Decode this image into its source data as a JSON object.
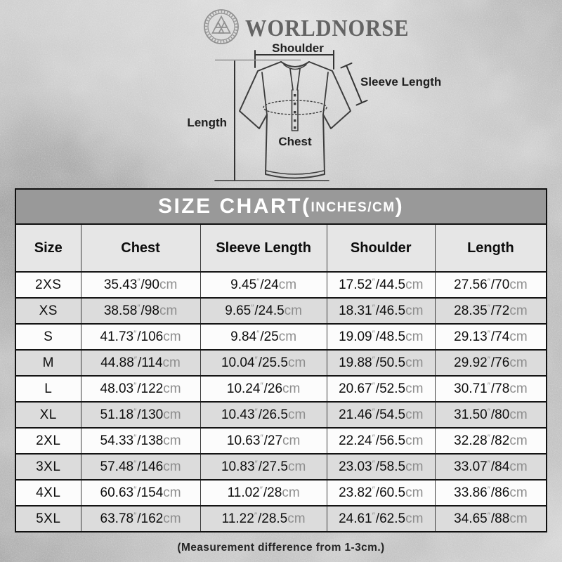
{
  "brand": {
    "name": "WORLDNORSE",
    "logo_icon": "valknut-circle-icon"
  },
  "diagram": {
    "labels": {
      "shoulder": "Shoulder",
      "sleeve_length": "Sleeve Length",
      "length": "Length",
      "chest": "Chest"
    }
  },
  "size_chart": {
    "title": {
      "main": "SIZE CHART(",
      "sub": "INCHES/CM",
      "close": ")"
    },
    "columns": [
      "Size",
      "Chest",
      "Sleeve Length",
      "Shoulder",
      "Length"
    ],
    "units": {
      "inch_mark": "″",
      "separator": "/",
      "cm_suffix": "cm"
    },
    "rows": [
      {
        "size": "2XS",
        "chest": {
          "in": "35.43",
          "cm": "90"
        },
        "sleeve": {
          "in": "9.45",
          "cm": "24"
        },
        "shoulder": {
          "in": "17.52",
          "cm": "44.5"
        },
        "length": {
          "in": "27.56",
          "cm": "70"
        }
      },
      {
        "size": "XS",
        "chest": {
          "in": "38.58",
          "cm": "98"
        },
        "sleeve": {
          "in": "9.65",
          "cm": "24.5"
        },
        "shoulder": {
          "in": "18.31",
          "cm": "46.5"
        },
        "length": {
          "in": "28.35",
          "cm": "72"
        }
      },
      {
        "size": "S",
        "chest": {
          "in": "41.73",
          "cm": "106"
        },
        "sleeve": {
          "in": "9.84",
          "cm": "25"
        },
        "shoulder": {
          "in": "19.09",
          "cm": "48.5"
        },
        "length": {
          "in": "29.13",
          "cm": "74"
        }
      },
      {
        "size": "M",
        "chest": {
          "in": "44.88",
          "cm": "114"
        },
        "sleeve": {
          "in": "10.04",
          "cm": "25.5"
        },
        "shoulder": {
          "in": "19.88",
          "cm": "50.5"
        },
        "length": {
          "in": "29.92",
          "cm": "76"
        }
      },
      {
        "size": "L",
        "chest": {
          "in": "48.03",
          "cm": "122"
        },
        "sleeve": {
          "in": "10.24",
          "cm": "26"
        },
        "shoulder": {
          "in": "20.67",
          "cm": "52.5"
        },
        "length": {
          "in": "30.71",
          "cm": "78"
        }
      },
      {
        "size": "XL",
        "chest": {
          "in": "51.18",
          "cm": "130"
        },
        "sleeve": {
          "in": "10.43",
          "cm": "26.5"
        },
        "shoulder": {
          "in": "21.46",
          "cm": "54.5"
        },
        "length": {
          "in": "31.50",
          "cm": "80"
        }
      },
      {
        "size": "2XL",
        "chest": {
          "in": "54.33",
          "cm": "138"
        },
        "sleeve": {
          "in": "10.63",
          "cm": "27"
        },
        "shoulder": {
          "in": "22.24",
          "cm": "56.5"
        },
        "length": {
          "in": "32.28",
          "cm": "82"
        }
      },
      {
        "size": "3XL",
        "chest": {
          "in": "57.48",
          "cm": "146"
        },
        "sleeve": {
          "in": "10.83",
          "cm": "27.5"
        },
        "shoulder": {
          "in": "23.03",
          "cm": "58.5"
        },
        "length": {
          "in": "33.07",
          "cm": "84"
        }
      },
      {
        "size": "4XL",
        "chest": {
          "in": "60.63",
          "cm": "154"
        },
        "sleeve": {
          "in": "11.02",
          "cm": "28"
        },
        "shoulder": {
          "in": "23.82",
          "cm": "60.5"
        },
        "length": {
          "in": "33.86",
          "cm": "86"
        }
      },
      {
        "size": "5XL",
        "chest": {
          "in": "63.78",
          "cm": "162"
        },
        "sleeve": {
          "in": "11.22",
          "cm": "28.5"
        },
        "shoulder": {
          "in": "24.61",
          "cm": "62.5"
        },
        "length": {
          "in": "34.65",
          "cm": "88"
        }
      }
    ]
  },
  "footer": {
    "note": "(Measurement difference from 1-3cm.)"
  },
  "colors": {
    "background_base": "#b5b5b5",
    "title_band_bg": "#999999",
    "title_text": "#ffffff",
    "header_row_bg": "#e6e6e6",
    "row_bg": "#fcfcfc",
    "row_alt_bg": "#dcdcdc",
    "table_border": "#101010",
    "cell_text": "#0e0e0e",
    "unit_text": "#8d8d8d",
    "brand_text": "#646464",
    "diagram_line": "#3d3d3d"
  }
}
